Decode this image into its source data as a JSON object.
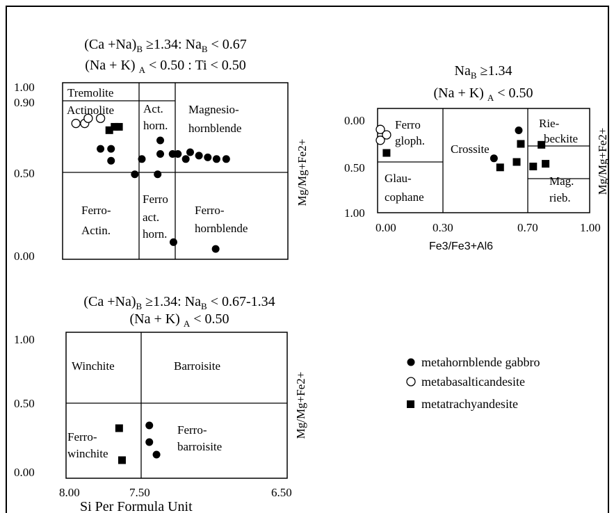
{
  "legend": {
    "items": [
      {
        "label": "metahornblende gabbro",
        "marker": "filled-circle"
      },
      {
        "label": "metabasalticandesite",
        "marker": "open-circle"
      },
      {
        "label": "metatrachyandesite",
        "marker": "filled-square"
      }
    ]
  },
  "chart_data": [
    {
      "type": "scatter",
      "title_lines": [
        "(Ca +Na)_B ≥1.34: Na_B < 0.67",
        "(Na + K) _A < 0.50 : Ti < 0.50"
      ],
      "xlabel": "",
      "ylabel": "Mg/Mg+Fe2+",
      "xlim": [
        8.0,
        5.5
      ],
      "x_reversed": true,
      "x_ticks_shown": false,
      "ylim": [
        0.0,
        1.0
      ],
      "y_ticks": [
        "0.00",
        "0.50",
        "0.90",
        "1.00"
      ],
      "grid": false,
      "fields": [
        "Tremolite",
        "Actinolite",
        "Act. horn.",
        "Magnesio- hornblende",
        "Ferro- Actin.",
        "Ferro act. horn.",
        "Ferro- hornblende"
      ],
      "series": [
        {
          "name": "metahornblende gabbro",
          "marker": "filled-circle",
          "points": [
            [
              7.6,
              0.61
            ],
            [
              7.48,
              0.61
            ],
            [
              7.48,
              0.54
            ],
            [
              7.21,
              0.46
            ],
            [
              7.13,
              0.55
            ],
            [
              6.95,
              0.46
            ],
            [
              6.92,
              0.58
            ],
            [
              6.92,
              0.66
            ],
            [
              6.78,
              0.58
            ],
            [
              6.72,
              0.58
            ],
            [
              6.63,
              0.55
            ],
            [
              6.58,
              0.59
            ],
            [
              6.48,
              0.57
            ],
            [
              6.38,
              0.56
            ],
            [
              6.28,
              0.55
            ],
            [
              6.17,
              0.55
            ],
            [
              6.77,
              0.06
            ],
            [
              6.29,
              0.02
            ]
          ]
        },
        {
          "name": "metabasalticandesite",
          "marker": "open-circle",
          "points": [
            [
              7.88,
              0.76
            ],
            [
              7.78,
              0.76
            ],
            [
              7.74,
              0.79
            ],
            [
              7.6,
              0.79
            ]
          ]
        },
        {
          "name": "metatrachyandesite",
          "marker": "filled-square",
          "points": [
            [
              7.5,
              0.72
            ],
            [
              7.44,
              0.74
            ],
            [
              7.39,
              0.74
            ]
          ]
        }
      ]
    },
    {
      "type": "scatter",
      "title_lines": [
        "Na_B ≥1.34",
        "(Na + K) _A < 0.50"
      ],
      "xlabel": "Fe3/Fe3+Al6",
      "ylabel": "Mg/Mg+Fe2+",
      "xlim": [
        0.0,
        1.0
      ],
      "x_ticks": [
        "0.00",
        "0.30",
        "0.70",
        "1.00"
      ],
      "ylim": [
        0.0,
        1.0
      ],
      "y_reversed": true,
      "y_ticks": [
        "0.00",
        "0.50",
        "1.00"
      ],
      "grid": false,
      "fields": [
        "Ferro gloph.",
        "Glau- cophane",
        "Crossite",
        "Rie- beckite",
        "Mag. rieb."
      ],
      "series": [
        {
          "name": "metahornblende gabbro",
          "marker": "filled-circle",
          "points": [
            [
              0.67,
              0.15
            ],
            [
              0.55,
              0.46
            ]
          ]
        },
        {
          "name": "metabasalticandesite",
          "marker": "open-circle",
          "points": [
            [
              0.0,
              0.14
            ],
            [
              0.03,
              0.2
            ],
            [
              0.0,
              0.26
            ]
          ]
        },
        {
          "name": "metatrachyandesite",
          "marker": "filled-square",
          "points": [
            [
              0.03,
              0.4
            ],
            [
              0.68,
              0.3
            ],
            [
              0.78,
              0.31
            ],
            [
              0.66,
              0.5
            ],
            [
              0.58,
              0.56
            ],
            [
              0.74,
              0.55
            ],
            [
              0.8,
              0.52
            ]
          ]
        }
      ]
    },
    {
      "type": "scatter",
      "title_lines": [
        "(Ca +Na)_B ≥1.34: Na_B < 0.67-1.34",
        "(Na + K) _A < 0.50"
      ],
      "xlabel": "Si Per Formula Unit",
      "ylabel": "Mg/Mg+Fe2+",
      "xlim": [
        8.0,
        6.5
      ],
      "x_reversed": true,
      "x_ticks": [
        "8.00",
        "7.50",
        "6.50"
      ],
      "ylim": [
        0.0,
        1.0
      ],
      "y_ticks": [
        "0.00",
        "0.50",
        "1.00"
      ],
      "grid": false,
      "fields": [
        "Winchite",
        "Barroisite",
        "Ferro- winchite",
        "Ferro- barroisite"
      ],
      "series": [
        {
          "name": "metahornblende gabbro",
          "marker": "filled-circle",
          "points": [
            [
              7.44,
              0.33
            ],
            [
              7.44,
              0.21
            ],
            [
              7.39,
              0.12
            ]
          ]
        },
        {
          "name": "metatrachyandesite",
          "marker": "filled-square",
          "points": [
            [
              7.65,
              0.31
            ],
            [
              7.63,
              0.08
            ]
          ]
        }
      ]
    }
  ]
}
